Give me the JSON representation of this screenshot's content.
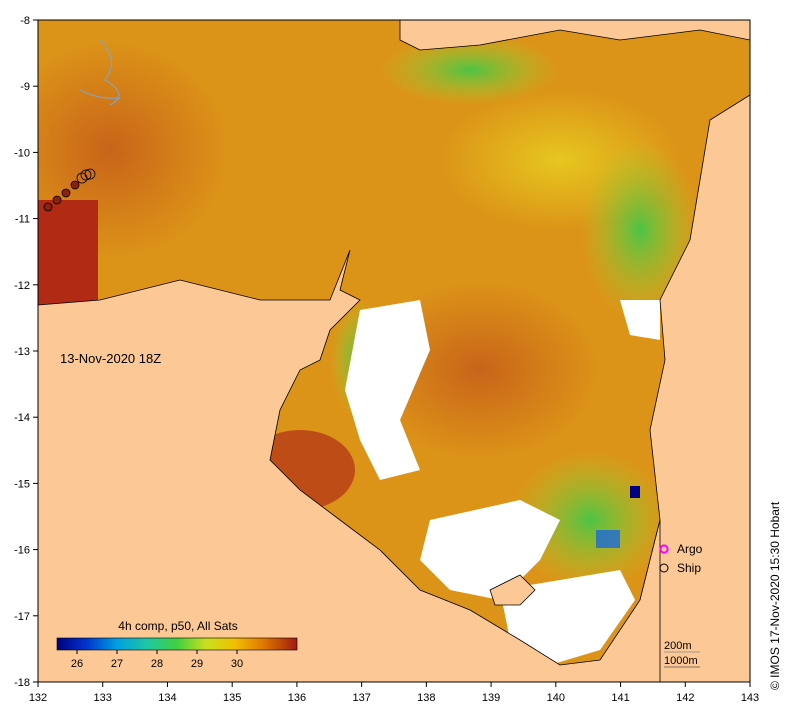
{
  "timestamp_label": "13-Nov-2020 18Z",
  "credit_text": "© IMOS 17-Nov-2020 15:30 Hobart",
  "colorbar": {
    "title": "4h comp, p50, All Sats",
    "ticks": [
      "26",
      "27",
      "28",
      "29",
      "30"
    ]
  },
  "legend": {
    "items": [
      {
        "label": "Argo",
        "marker": "magenta-star-icon",
        "color": "#ff00ff"
      },
      {
        "label": "Ship",
        "marker": "circle-icon",
        "color": "#000000"
      }
    ]
  },
  "isobaths": [
    "200m",
    "1000m"
  ],
  "axes": {
    "x_ticks": [
      "132",
      "133",
      "134",
      "135",
      "136",
      "137",
      "138",
      "139",
      "140",
      "141",
      "142",
      "143"
    ],
    "y_ticks": [
      "-8",
      "-9",
      "-10",
      "-11",
      "-12",
      "-13",
      "-14",
      "-15",
      "-16",
      "-17",
      "-18"
    ],
    "xlim": [
      132,
      143
    ],
    "ylim": [
      -18,
      -8
    ]
  },
  "colors": {
    "land": "#fcc896",
    "cloud": "#ffffff",
    "sst_warm": "#d98a10",
    "sst_hot": "#b23a10",
    "sst_cool": "#2fb842"
  }
}
